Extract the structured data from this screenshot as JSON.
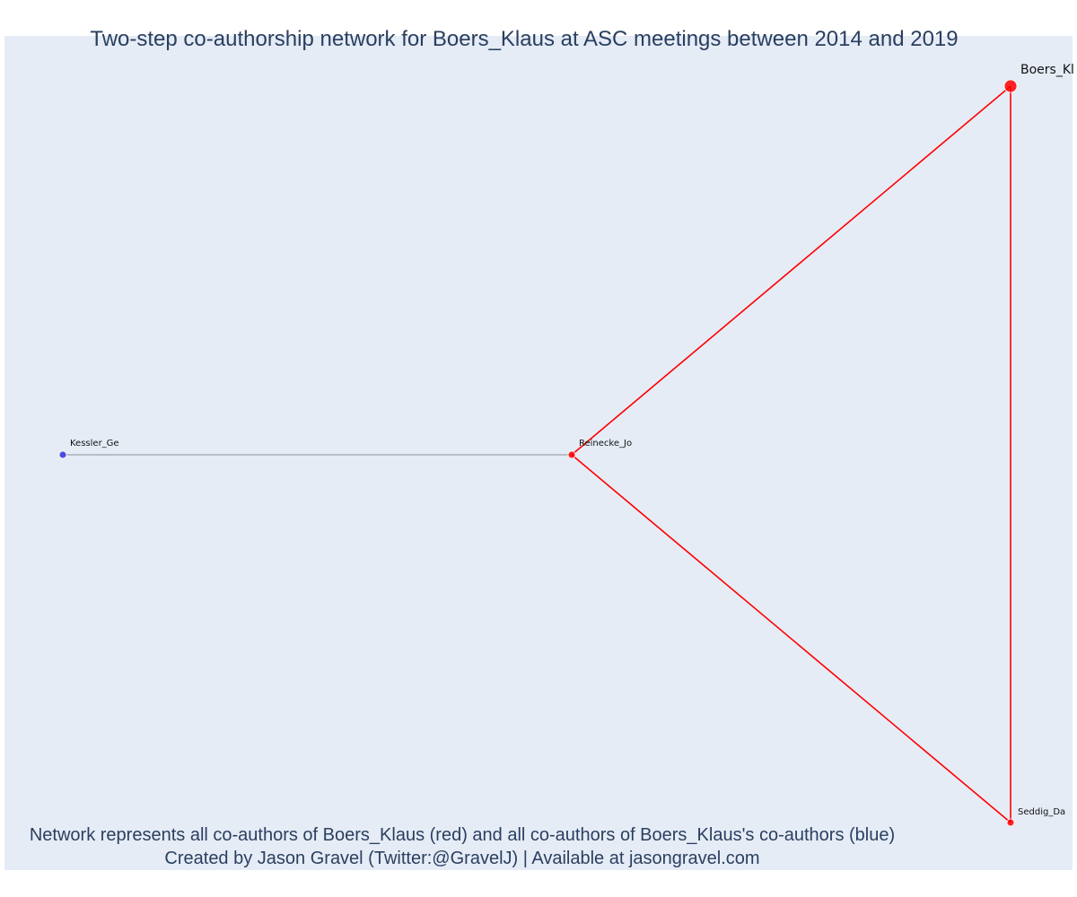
{
  "title": "Two-step co-authorship network for Boers_Klaus at ASC meetings between 2014 and 2019",
  "caption": {
    "line1": "Network represents all co-authors of Boers_Klaus (red) and all co-authors of Boers_Klaus's co-authors (blue)",
    "line2": "Created by Jason Gravel (Twitter:@GravelJ) | Available at jasongravel.com"
  },
  "colors": {
    "plot_background": "#e5ecf6",
    "first_step": "#ff0000",
    "second_step": "#3333dd",
    "second_step_edge": "#8a8f9a",
    "text": "#2a3f5f"
  },
  "nodes": [
    {
      "id": "Boers_Kl",
      "group": "focal"
    },
    {
      "id": "Reinecke_Jo",
      "group": "coauthor"
    },
    {
      "id": "Seddig_Da",
      "group": "coauthor"
    },
    {
      "id": "Kessler_Ge",
      "group": "second_step"
    }
  ],
  "edges": [
    {
      "source": "Boers_Kl",
      "target": "Reinecke_Jo",
      "group": "coauthor"
    },
    {
      "source": "Boers_Kl",
      "target": "Seddig_Da",
      "group": "coauthor"
    },
    {
      "source": "Reinecke_Jo",
      "target": "Seddig_Da",
      "group": "coauthor"
    },
    {
      "source": "Reinecke_Jo",
      "target": "Kessler_Ge",
      "group": "second_step"
    }
  ]
}
